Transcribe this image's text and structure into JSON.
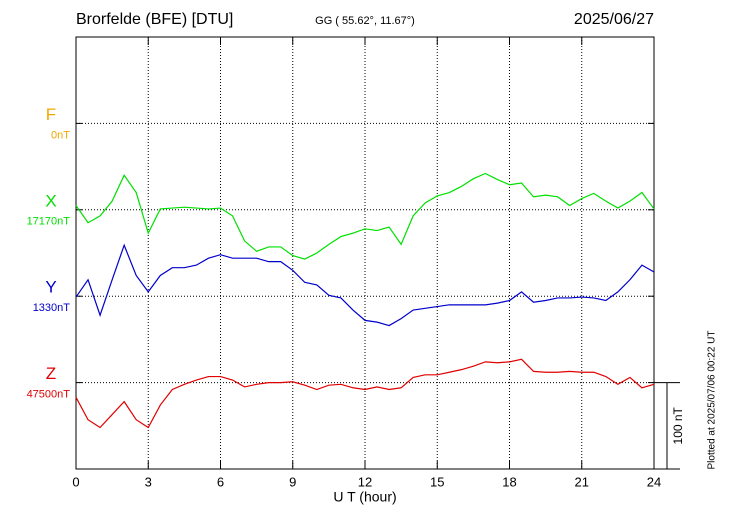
{
  "chart_data": {
    "type": "line",
    "title": "Brorfelde (BFE)  [DTU]",
    "subtitle": "GG ( 55.62°,  11.67°)",
    "date": "2025/06/27",
    "xlabel": "U T (hour)",
    "footnote": "Plotted at 2025/07/06 00:22 UT",
    "xlim": [
      0,
      24
    ],
    "xticks": [
      0,
      3,
      6,
      9,
      12,
      15,
      18,
      21,
      24
    ],
    "grid": true,
    "scale_bar": {
      "value": 100,
      "label": "100 nT"
    },
    "x": [
      0,
      0.5,
      1,
      1.5,
      2,
      2.5,
      3,
      3.5,
      4,
      4.5,
      5,
      5.5,
      6,
      6.5,
      7,
      7.5,
      8,
      8.5,
      9,
      9.5,
      10,
      10.5,
      11,
      11.5,
      12,
      12.5,
      13,
      13.5,
      14,
      14.5,
      15,
      15.5,
      16,
      16.5,
      17,
      17.5,
      18,
      18.5,
      19,
      19.5,
      20,
      20.5,
      21,
      21.5,
      22,
      22.5,
      23,
      23.5,
      24
    ],
    "series": [
      {
        "name": "F",
        "color": "#f0a800",
        "baseline": {
          "value": 0,
          "label": "0nT"
        },
        "values": [
          null,
          null,
          null,
          null,
          null,
          null,
          null,
          null,
          null,
          null,
          null,
          null,
          null,
          null,
          null,
          null,
          null,
          null,
          null,
          null,
          null,
          null,
          null,
          null,
          null,
          null,
          null,
          null,
          null,
          null,
          null,
          null,
          null,
          null,
          null,
          null,
          null,
          null,
          null,
          null,
          null,
          null,
          null,
          null,
          null,
          null,
          null,
          null,
          null
        ]
      },
      {
        "name": "X",
        "color": "#00e000",
        "baseline": {
          "value": 17170,
          "label": "17170nT"
        },
        "values": [
          17175,
          17155,
          17163,
          17180,
          17210,
          17190,
          17143,
          17171,
          17172,
          17173,
          17172,
          17171,
          17172,
          17163,
          17134,
          17122,
          17127,
          17127,
          17117,
          17113,
          17120,
          17130,
          17139,
          17143,
          17148,
          17146,
          17150,
          17130,
          17163,
          17178,
          17186,
          17190,
          17197,
          17206,
          17212,
          17205,
          17199,
          17201,
          17185,
          17187,
          17185,
          17175,
          17183,
          17189,
          17180,
          17172,
          17180,
          17190,
          17171
        ]
      },
      {
        "name": "Y",
        "color": "#0000cc",
        "baseline": {
          "value": 1330,
          "label": "1330nT"
        },
        "values": [
          1329,
          1349,
          1308,
          1349,
          1389,
          1354,
          1335,
          1354,
          1363,
          1363,
          1366,
          1374,
          1378,
          1374,
          1374,
          1374,
          1370,
          1370,
          1360,
          1346,
          1343,
          1331,
          1328,
          1314,
          1302,
          1300,
          1296,
          1304,
          1314,
          1316,
          1318,
          1320,
          1320,
          1320,
          1320,
          1322,
          1325,
          1335,
          1323,
          1325,
          1328,
          1328,
          1329,
          1328,
          1325,
          1335,
          1349,
          1366,
          1358
        ]
      },
      {
        "name": "Z",
        "color": "#e00000",
        "baseline": {
          "value": 47500,
          "label": "47500nT"
        },
        "values": [
          47483,
          47457,
          47448,
          47463,
          47478,
          47457,
          47448,
          47474,
          47492,
          47498,
          47503,
          47507,
          47507,
          47503,
          47495,
          47498,
          47500,
          47500,
          47501,
          47497,
          47492,
          47497,
          47498,
          47494,
          47492,
          47495,
          47492,
          47494,
          47506,
          47509,
          47509,
          47512,
          47515,
          47519,
          47524,
          47523,
          47524,
          47527,
          47513,
          47512,
          47512,
          47513,
          47512,
          47512,
          47507,
          47498,
          47506,
          47494,
          47498
        ]
      }
    ]
  }
}
